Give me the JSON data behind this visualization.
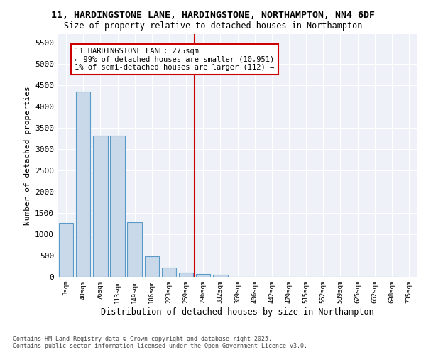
{
  "title_line1": "11, HARDINGSTONE LANE, HARDINGSTONE, NORTHAMPTON, NN4 6DF",
  "title_line2": "Size of property relative to detached houses in Northampton",
  "xlabel": "Distribution of detached houses by size in Northampton",
  "ylabel": "Number of detached properties",
  "footnote": "Contains HM Land Registry data © Crown copyright and database right 2025.\nContains public sector information licensed under the Open Government Licence v3.0.",
  "annotation_line1": "11 HARDINGSTONE LANE: 275sqm",
  "annotation_line2": "← 99% of detached houses are smaller (10,951)",
  "annotation_line3": "1% of semi-detached houses are larger (112) →",
  "bar_color": "#c9d9ea",
  "bar_edge_color": "#5a9ac8",
  "background_color": "#eef2f8",
  "grid_color": "#ffffff",
  "vline_color": "#cc0000",
  "vline_x": 7.5,
  "bins": [
    "3sqm",
    "40sqm",
    "76sqm",
    "113sqm",
    "149sqm",
    "186sqm",
    "223sqm",
    "259sqm",
    "296sqm",
    "332sqm",
    "369sqm",
    "406sqm",
    "442sqm",
    "479sqm",
    "515sqm",
    "552sqm",
    "589sqm",
    "625sqm",
    "662sqm",
    "698sqm"
  ],
  "values": [
    1260,
    4350,
    3320,
    3320,
    1280,
    490,
    210,
    100,
    70,
    50,
    0,
    0,
    0,
    0,
    0,
    0,
    0,
    0,
    0,
    0
  ],
  "xlim_labels": [
    "3sqm",
    "40sqm",
    "76sqm",
    "113sqm",
    "149sqm",
    "186sqm",
    "223sqm",
    "259sqm",
    "296sqm",
    "332sqm",
    "369sqm",
    "406sqm",
    "442sqm",
    "479sqm",
    "515sqm",
    "552sqm",
    "589sqm",
    "625sqm",
    "662sqm",
    "698sqm",
    "735sqm"
  ],
  "ylim": [
    0,
    5700
  ],
  "yticks": [
    0,
    500,
    1000,
    1500,
    2000,
    2500,
    3000,
    3500,
    4000,
    4500,
    5000,
    5500
  ]
}
